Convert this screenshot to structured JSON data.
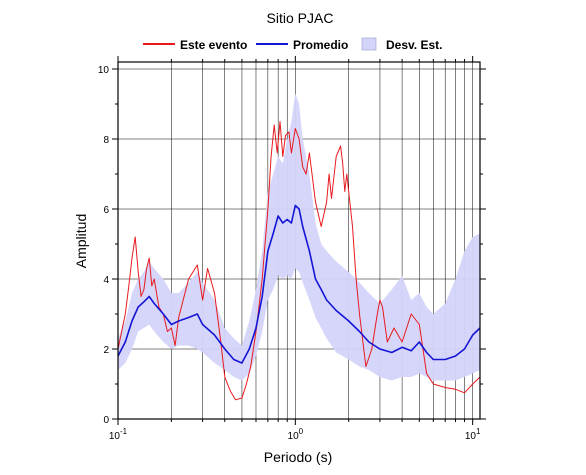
{
  "chart_data": {
    "type": "line",
    "title": "Sitio PJAC",
    "xlabel": "Periodo (s)",
    "ylabel": "Amplitud",
    "x_scale": "log",
    "xlim": [
      0.1,
      11
    ],
    "ylim": [
      0,
      10.2
    ],
    "x_ticks": [
      {
        "base": "10",
        "exp": "-1"
      },
      {
        "base": "10",
        "exp": "0"
      },
      {
        "base": "10",
        "exp": "1"
      }
    ],
    "y_ticks": [
      "0",
      "2",
      "4",
      "6",
      "8",
      "10"
    ],
    "grid": true,
    "legend": {
      "position": "top",
      "entries": [
        {
          "label": "Este evento",
          "color": "#e8191e",
          "kind": "line"
        },
        {
          "label": "Promedio",
          "color": "#1515d6",
          "kind": "line"
        },
        {
          "label": "Desv. Est.",
          "color": "#d4d4fa",
          "kind": "area"
        }
      ]
    },
    "series": [
      {
        "name": "Este evento",
        "color": "#e8191e",
        "x": [
          0.1,
          0.11,
          0.115,
          0.12,
          0.125,
          0.13,
          0.135,
          0.14,
          0.145,
          0.15,
          0.155,
          0.16,
          0.17,
          0.18,
          0.19,
          0.2,
          0.21,
          0.22,
          0.25,
          0.28,
          0.3,
          0.32,
          0.35,
          0.38,
          0.4,
          0.43,
          0.46,
          0.5,
          0.53,
          0.56,
          0.6,
          0.65,
          0.7,
          0.73,
          0.76,
          0.79,
          0.82,
          0.85,
          0.88,
          0.92,
          0.95,
          1.0,
          1.05,
          1.1,
          1.15,
          1.2,
          1.3,
          1.4,
          1.5,
          1.55,
          1.6,
          1.7,
          1.8,
          1.85,
          1.9,
          1.95,
          2.0,
          2.1,
          2.2,
          2.3,
          2.5,
          2.7,
          2.9,
          3.0,
          3.1,
          3.3,
          3.6,
          4.0,
          4.5,
          5.0,
          5.5,
          6.0,
          7.0,
          8.0,
          9.0,
          10.0,
          11.0
        ],
        "y": [
          2.0,
          3.0,
          3.8,
          4.6,
          5.2,
          4.2,
          3.5,
          3.7,
          4.3,
          4.6,
          3.8,
          4.0,
          3.2,
          3.0,
          2.5,
          2.6,
          2.1,
          2.9,
          4.0,
          4.4,
          3.4,
          4.3,
          3.6,
          2.2,
          1.2,
          0.8,
          0.55,
          0.6,
          1.0,
          1.5,
          2.5,
          4.0,
          6.0,
          7.5,
          8.4,
          7.6,
          8.5,
          7.5,
          8.1,
          8.2,
          7.6,
          8.3,
          8.0,
          7.2,
          7.0,
          7.6,
          6.2,
          5.5,
          6.2,
          7.0,
          6.3,
          7.5,
          7.8,
          7.3,
          6.5,
          7.0,
          6.5,
          5.5,
          4.0,
          3.0,
          1.5,
          2.0,
          3.0,
          3.4,
          3.2,
          2.2,
          2.6,
          2.2,
          3.0,
          2.7,
          1.3,
          1.0,
          0.9,
          0.85,
          0.75,
          1.0,
          1.2
        ]
      },
      {
        "name": "Promedio",
        "color": "#1515d6",
        "x": [
          0.1,
          0.11,
          0.12,
          0.13,
          0.14,
          0.15,
          0.16,
          0.18,
          0.2,
          0.22,
          0.25,
          0.28,
          0.3,
          0.35,
          0.4,
          0.45,
          0.5,
          0.55,
          0.6,
          0.65,
          0.7,
          0.75,
          0.8,
          0.85,
          0.9,
          0.95,
          1.0,
          1.05,
          1.1,
          1.2,
          1.3,
          1.4,
          1.5,
          1.7,
          2.0,
          2.3,
          2.6,
          3.0,
          3.5,
          4.0,
          4.5,
          5.0,
          5.5,
          6.0,
          7.0,
          8.0,
          9.0,
          10.0,
          11.0
        ],
        "y": [
          1.8,
          2.2,
          2.8,
          3.2,
          3.35,
          3.5,
          3.3,
          3.0,
          2.7,
          2.8,
          2.9,
          3.0,
          2.7,
          2.4,
          2.0,
          1.7,
          1.6,
          2.0,
          2.6,
          3.5,
          4.8,
          5.3,
          5.8,
          5.6,
          5.7,
          5.6,
          6.1,
          6.0,
          5.5,
          4.8,
          4.0,
          3.7,
          3.4,
          3.1,
          2.8,
          2.5,
          2.2,
          2.0,
          1.9,
          2.05,
          1.95,
          2.2,
          1.9,
          1.7,
          1.7,
          1.8,
          2.0,
          2.4,
          2.6
        ]
      },
      {
        "name": "Desv. Est.",
        "kind": "band",
        "color": "#d4d4fa",
        "x": [
          0.1,
          0.11,
          0.12,
          0.13,
          0.14,
          0.15,
          0.16,
          0.18,
          0.2,
          0.22,
          0.25,
          0.28,
          0.3,
          0.35,
          0.4,
          0.45,
          0.5,
          0.55,
          0.6,
          0.65,
          0.7,
          0.75,
          0.8,
          0.85,
          0.9,
          0.95,
          1.0,
          1.05,
          1.1,
          1.2,
          1.3,
          1.4,
          1.5,
          1.7,
          2.0,
          2.3,
          2.6,
          3.0,
          3.5,
          4.0,
          4.5,
          5.0,
          5.5,
          6.0,
          7.0,
          8.0,
          9.0,
          10.0,
          11.0
        ],
        "lower": [
          1.4,
          1.6,
          2.0,
          2.5,
          2.6,
          2.7,
          2.5,
          2.2,
          2.0,
          2.1,
          2.1,
          2.0,
          1.9,
          1.6,
          1.4,
          1.2,
          1.1,
          1.3,
          1.8,
          2.5,
          3.4,
          3.7,
          4.1,
          4.0,
          4.1,
          4.0,
          4.3,
          4.2,
          3.9,
          3.4,
          2.9,
          2.6,
          2.3,
          1.9,
          1.7,
          1.5,
          1.4,
          1.2,
          1.1,
          1.2,
          1.2,
          1.3,
          1.2,
          1.1,
          1.1,
          1.1,
          1.2,
          1.3,
          1.4
        ],
        "upper": [
          2.3,
          2.8,
          3.6,
          4.0,
          4.2,
          4.5,
          4.3,
          4.0,
          3.6,
          3.6,
          3.9,
          4.2,
          3.9,
          3.4,
          2.6,
          2.3,
          2.1,
          2.8,
          3.7,
          4.8,
          6.5,
          7.0,
          7.5,
          7.3,
          8.0,
          8.5,
          9.3,
          9.0,
          8.0,
          7.0,
          5.6,
          5.0,
          4.8,
          4.5,
          4.2,
          3.9,
          3.6,
          3.3,
          3.7,
          4.1,
          3.4,
          3.6,
          3.2,
          3.0,
          3.3,
          4.0,
          4.8,
          5.2,
          5.3
        ]
      }
    ]
  }
}
